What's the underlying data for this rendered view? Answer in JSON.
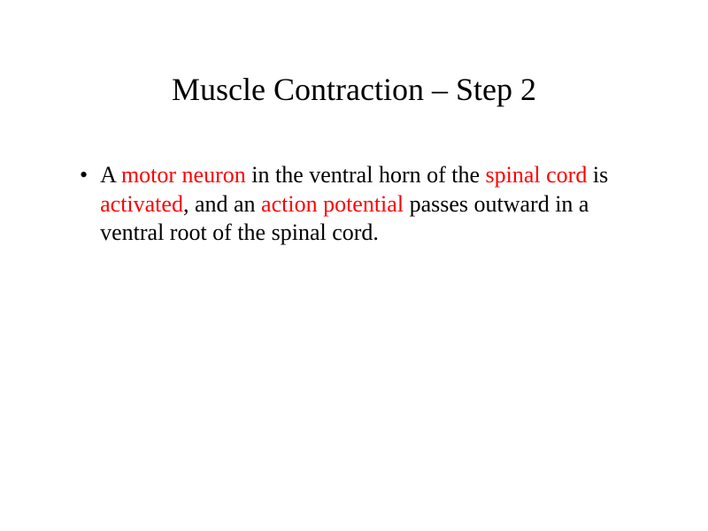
{
  "slide": {
    "title": "Muscle Contraction – Step 2",
    "bullet_marker": "•",
    "text": {
      "p1": "A ",
      "p2_hl": "motor neuron",
      "p3": " in the ventral horn of the ",
      "p4_hl": "spinal cord",
      "p5": " is ",
      "p6_hl": "activated",
      "p7": ", and an ",
      "p8_hl": "action potential",
      "p9": " passes outward in a ventral root of the spinal cord. "
    }
  },
  "style": {
    "title_fontsize": 36,
    "body_fontsize": 26,
    "font_family": "Times New Roman",
    "highlight_color": "#ff0000",
    "text_color": "#000000",
    "background_color": "#ffffff"
  }
}
